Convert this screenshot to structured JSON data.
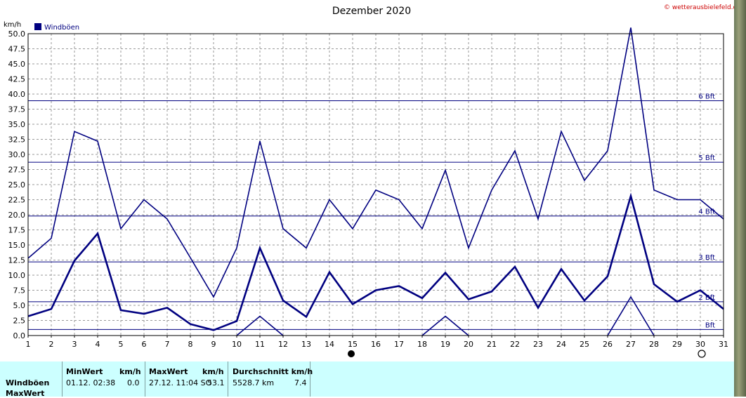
{
  "copyright": "© wetterausbielefeld.de",
  "chart_data": {
    "type": "line",
    "title": "Dezember 2020",
    "ylabel": "km/h",
    "legend": "Windböen",
    "legend_placement": "top-left",
    "grid": true,
    "xlim": [
      1,
      31
    ],
    "ylim": [
      0,
      50
    ],
    "x": [
      1,
      2,
      3,
      4,
      5,
      6,
      7,
      8,
      9,
      10,
      11,
      12,
      13,
      14,
      15,
      16,
      17,
      18,
      19,
      20,
      21,
      22,
      23,
      24,
      25,
      26,
      27,
      28,
      29,
      30,
      31
    ],
    "yticks": [
      "0.0",
      "2.5",
      "5.0",
      "7.5",
      "10.0",
      "12.5",
      "15.0",
      "17.5",
      "20.0",
      "22.5",
      "25.0",
      "27.5",
      "30.0",
      "32.5",
      "35.0",
      "37.5",
      "40.0",
      "42.5",
      "45.0",
      "47.5",
      "50.0"
    ],
    "series": [
      {
        "values": [
          12.8,
          16.1,
          33.8,
          32.2,
          17.7,
          22.5,
          19.3,
          12.9,
          6.4,
          14.5,
          32.2,
          17.7,
          14.5,
          22.5,
          17.7,
          24.1,
          22.5,
          17.7,
          27.4,
          14.5,
          24.1,
          30.6,
          19.3,
          33.8,
          25.7,
          30.6,
          51.5,
          24.1,
          22.5,
          22.5,
          19.3
        ]
      },
      {
        "values": [
          3.2,
          4.4,
          12.4,
          16.9,
          4.2,
          3.6,
          4.6,
          1.9,
          0.9,
          2.4,
          14.5,
          5.8,
          3.1,
          10.5,
          5.2,
          7.5,
          8.2,
          6.2,
          10.4,
          6.0,
          7.3,
          11.4,
          4.6,
          11.0,
          5.8,
          9.8,
          23.1,
          8.5,
          5.6,
          7.5,
          4.4
        ]
      },
      {
        "values": [
          null,
          null,
          null,
          null,
          null,
          null,
          null,
          null,
          null,
          0.0,
          3.2,
          0.0,
          null,
          null,
          null,
          null,
          null,
          0.0,
          3.2,
          0.0,
          null,
          null,
          null,
          null,
          null,
          0.0,
          6.4,
          0.0,
          null,
          null,
          null
        ]
      }
    ],
    "reference_lines": [
      {
        "value": 1.0,
        "label": "Bft"
      },
      {
        "value": 5.6,
        "label": "2 Bft"
      },
      {
        "value": 12.2,
        "label": "3 Bft"
      },
      {
        "value": 19.8,
        "label": "4 Bft"
      },
      {
        "value": 28.7,
        "label": "5 Bft"
      },
      {
        "value": 38.9,
        "label": "6 Bft"
      }
    ],
    "moon_phases": [
      {
        "day": 15,
        "phase": "new"
      },
      {
        "day": 30,
        "phase": "full"
      }
    ]
  },
  "summary": {
    "row_label_1": "Windböen",
    "row_label_2": "MaxWert",
    "min_header": "MinWert",
    "min_unit": "km/h",
    "min_time": "01.12.  02:38",
    "min_value": "0.0",
    "max_header": "MaxWert",
    "max_unit": "km/h",
    "max_time": "27.12.  11:04 SO",
    "max_value": "53.1",
    "avg_header": "Durchschnitt km/h",
    "avg_distance": "5528.7 km",
    "avg_value": "7.4"
  }
}
